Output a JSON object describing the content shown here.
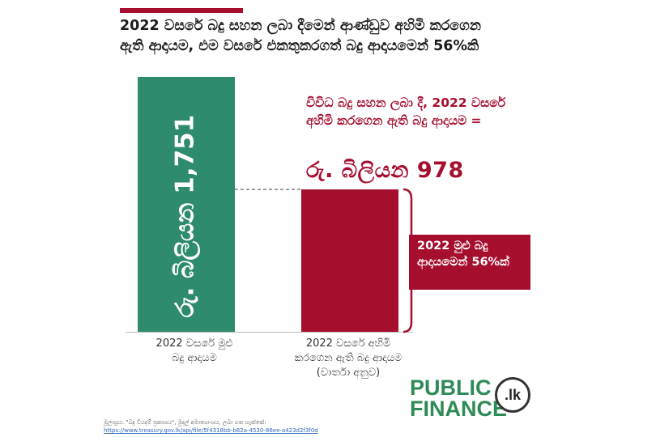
{
  "title": "2022 වසරේ බදු සහන ලබා දීමෙන් ආණ්ඩුව අහිමි කරගෙන ඇති ආදායම, එම වසරේ එකතුකරගත් බදු ආදායමෙන් 56%කි",
  "annotation": "විවිධ බදු සහන ලබා දී, 2022 වසරේ අහිමි කරගෙන ඇති බදු ආදායම =",
  "annotation_value": "රු. බිලියන 978",
  "share_box": "2022 මුළු බදු ආදායමෙන් 56%ක්",
  "colors": {
    "total_bar": "#2e8b6e",
    "foregone_bar": "#a50e2d",
    "accent": "#a50e2d"
  },
  "chart_data": {
    "type": "bar",
    "categories": [
      "2022 වසරේ මුළු බදු ආදායම",
      "2022 වසරේ අහිමි කරගෙන ඇති බදු ආදායම (වාර්තා අනුව)"
    ],
    "values": [
      1751,
      978
    ],
    "value_labels": [
      "රු. බිලියන 1,751",
      "රු. බිලියන 978"
    ],
    "unit": "රු. බිලියන",
    "ylim": [
      0,
      1751
    ],
    "grid": false,
    "legend": "none"
  },
  "category_labels": {
    "cat1_line1": "2022 වසරේ මුළු",
    "cat1_line2": "බදු ආදායම",
    "cat2_line1": "2022 වසරේ අහිමි",
    "cat2_line2": "කරගෙන ඇති බදු ආදායම",
    "cat2_line3": "(වාර්තා අනුව)"
  },
  "logo": {
    "line1": "PUBLIC",
    "line2": "FINANCE",
    "badge": ".lk"
  },
  "source": {
    "label": "මූලාශ්‍රය: \"බදු වියදම් ප්‍රකාශය\", මුදල් අමාත්‍යාංශය, ලබා ගත හැක්කේ:",
    "url": "https://www.treasury.gov.lk/api/file/5f4318bb-b82a-4530-86ee-a423d2f3f0d"
  }
}
